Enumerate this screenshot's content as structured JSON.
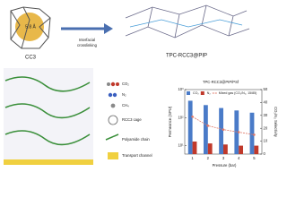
{
  "figure": {
    "cage_size": "5.8 Å",
    "cage_name": "CC3",
    "process": [
      "Interfacial",
      "crosslinking"
    ],
    "product": "TPC-RCC3@PIP",
    "legend": [
      "CO₂",
      "N₂",
      "CH₄",
      "RCC3 cage",
      "Polyamide chain",
      "Transport channel"
    ]
  },
  "chart_data": {
    "type": "bar",
    "title": "TPC-RCC3@PIP/PSf",
    "x_label": "Pressure (bar)",
    "y_label": "Permeance (GPU)",
    "y2_label": "CO₂/N₂ Selectivity",
    "categories": [
      "1",
      "2",
      "3",
      "4",
      "5"
    ],
    "log_y": true,
    "ylim": [
      5,
      1000
    ],
    "yticks": [
      {
        "value": 10,
        "label": "10¹"
      },
      {
        "value": 100,
        "label": "10²"
      },
      {
        "value": 1000,
        "label": "10³"
      }
    ],
    "y2lim": [
      0,
      50
    ],
    "y2ticks": [
      0,
      10,
      20,
      30,
      40,
      50
    ],
    "series": [
      {
        "name": "CO₂",
        "color": "#4a7bc8",
        "values": [
          400,
          280,
          220,
          180,
          150
        ]
      },
      {
        "name": "N₂",
        "color": "#c0392b",
        "values": [
          14,
          12,
          11,
          10,
          10
        ]
      },
      {
        "name": "Mixed gas (CO₂/N₂, 15/85)",
        "type": "line",
        "axis": "y2",
        "color": "#e07a6a",
        "values": [
          29,
          22,
          19,
          17,
          15
        ]
      }
    ]
  }
}
